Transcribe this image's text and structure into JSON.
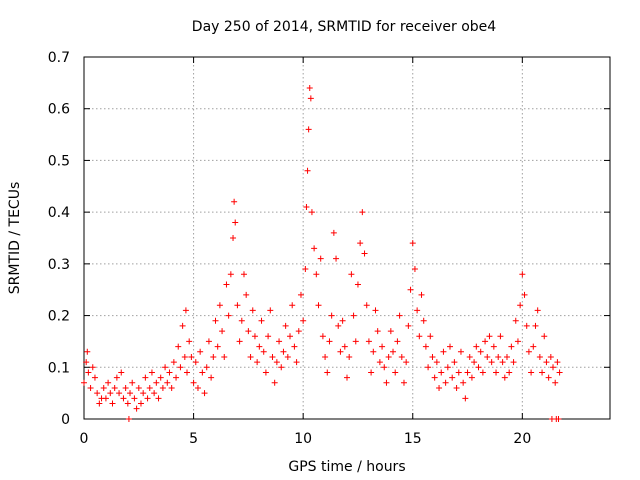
{
  "chart_data": {
    "type": "scatter",
    "title": "Day 250 of 2014, SRMTID for receiver obe4",
    "xlabel": "GPS time / hours",
    "ylabel": "SRMTID / TECUs",
    "xlim": [
      0,
      24
    ],
    "ylim": [
      0,
      0.7
    ],
    "xticks": [
      0,
      5,
      10,
      15,
      20
    ],
    "xtick_labels": [
      "0",
      "5",
      "10",
      "15",
      "20"
    ],
    "yticks": [
      0,
      0.1,
      0.2,
      0.3,
      0.4,
      0.5,
      0.6,
      0.7
    ],
    "ytick_labels": [
      "0",
      "0.1",
      "0.2",
      "0.3",
      "0.4",
      "0.5",
      "0.6",
      "0.7"
    ],
    "grid": true,
    "marker": "+",
    "color": "#ff0000",
    "series": [
      {
        "name": "SRMTID",
        "points": [
          [
            0.0,
            0.07
          ],
          [
            0.1,
            0.11
          ],
          [
            0.15,
            0.13
          ],
          [
            0.2,
            0.09
          ],
          [
            0.3,
            0.06
          ],
          [
            0.4,
            0.1
          ],
          [
            0.5,
            0.08
          ],
          [
            0.6,
            0.05
          ],
          [
            0.7,
            0.03
          ],
          [
            0.8,
            0.04
          ],
          [
            0.9,
            0.06
          ],
          [
            1.0,
            0.04
          ],
          [
            1.1,
            0.07
          ],
          [
            1.2,
            0.05
          ],
          [
            1.3,
            0.03
          ],
          [
            1.4,
            0.06
          ],
          [
            1.5,
            0.08
          ],
          [
            1.6,
            0.05
          ],
          [
            1.7,
            0.09
          ],
          [
            1.8,
            0.04
          ],
          [
            1.9,
            0.06
          ],
          [
            2.0,
            0.03
          ],
          [
            2.05,
            0.0
          ],
          [
            2.1,
            0.05
          ],
          [
            2.2,
            0.07
          ],
          [
            2.3,
            0.04
          ],
          [
            2.4,
            0.02
          ],
          [
            2.5,
            0.06
          ],
          [
            2.6,
            0.03
          ],
          [
            2.7,
            0.05
          ],
          [
            2.8,
            0.08
          ],
          [
            2.9,
            0.04
          ],
          [
            3.0,
            0.06
          ],
          [
            3.1,
            0.09
          ],
          [
            3.2,
            0.05
          ],
          [
            3.3,
            0.07
          ],
          [
            3.4,
            0.04
          ],
          [
            3.5,
            0.08
          ],
          [
            3.6,
            0.06
          ],
          [
            3.7,
            0.1
          ],
          [
            3.8,
            0.07
          ],
          [
            3.9,
            0.09
          ],
          [
            4.0,
            0.06
          ],
          [
            4.1,
            0.11
          ],
          [
            4.2,
            0.08
          ],
          [
            4.3,
            0.14
          ],
          [
            4.4,
            0.1
          ],
          [
            4.5,
            0.18
          ],
          [
            4.6,
            0.12
          ],
          [
            4.65,
            0.21
          ],
          [
            4.7,
            0.09
          ],
          [
            4.8,
            0.15
          ],
          [
            4.9,
            0.12
          ],
          [
            5.0,
            0.07
          ],
          [
            5.1,
            0.11
          ],
          [
            5.2,
            0.06
          ],
          [
            5.3,
            0.13
          ],
          [
            5.4,
            0.09
          ],
          [
            5.5,
            0.05
          ],
          [
            5.6,
            0.1
          ],
          [
            5.7,
            0.15
          ],
          [
            5.8,
            0.08
          ],
          [
            5.9,
            0.12
          ],
          [
            6.0,
            0.19
          ],
          [
            6.1,
            0.14
          ],
          [
            6.2,
            0.22
          ],
          [
            6.3,
            0.17
          ],
          [
            6.4,
            0.12
          ],
          [
            6.5,
            0.26
          ],
          [
            6.6,
            0.2
          ],
          [
            6.7,
            0.28
          ],
          [
            6.8,
            0.35
          ],
          [
            6.85,
            0.42
          ],
          [
            6.9,
            0.38
          ],
          [
            7.0,
            0.22
          ],
          [
            7.1,
            0.15
          ],
          [
            7.2,
            0.19
          ],
          [
            7.3,
            0.28
          ],
          [
            7.4,
            0.24
          ],
          [
            7.5,
            0.17
          ],
          [
            7.6,
            0.12
          ],
          [
            7.7,
            0.21
          ],
          [
            7.8,
            0.16
          ],
          [
            7.9,
            0.11
          ],
          [
            8.0,
            0.14
          ],
          [
            8.1,
            0.19
          ],
          [
            8.2,
            0.13
          ],
          [
            8.3,
            0.09
          ],
          [
            8.4,
            0.16
          ],
          [
            8.5,
            0.21
          ],
          [
            8.6,
            0.12
          ],
          [
            8.7,
            0.07
          ],
          [
            8.8,
            0.11
          ],
          [
            8.9,
            0.15
          ],
          [
            9.0,
            0.1
          ],
          [
            9.1,
            0.13
          ],
          [
            9.2,
            0.18
          ],
          [
            9.3,
            0.12
          ],
          [
            9.4,
            0.16
          ],
          [
            9.5,
            0.22
          ],
          [
            9.6,
            0.14
          ],
          [
            9.7,
            0.11
          ],
          [
            9.8,
            0.17
          ],
          [
            9.9,
            0.24
          ],
          [
            10.0,
            0.19
          ],
          [
            10.1,
            0.29
          ],
          [
            10.15,
            0.41
          ],
          [
            10.2,
            0.48
          ],
          [
            10.25,
            0.56
          ],
          [
            10.3,
            0.64
          ],
          [
            10.35,
            0.62
          ],
          [
            10.4,
            0.4
          ],
          [
            10.5,
            0.33
          ],
          [
            10.6,
            0.28
          ],
          [
            10.7,
            0.22
          ],
          [
            10.8,
            0.31
          ],
          [
            10.9,
            0.16
          ],
          [
            11.0,
            0.12
          ],
          [
            11.1,
            0.09
          ],
          [
            11.2,
            0.15
          ],
          [
            11.3,
            0.2
          ],
          [
            11.4,
            0.36
          ],
          [
            11.5,
            0.31
          ],
          [
            11.6,
            0.18
          ],
          [
            11.7,
            0.13
          ],
          [
            11.8,
            0.19
          ],
          [
            11.9,
            0.14
          ],
          [
            12.0,
            0.08
          ],
          [
            12.1,
            0.12
          ],
          [
            12.2,
            0.28
          ],
          [
            12.3,
            0.2
          ],
          [
            12.4,
            0.15
          ],
          [
            12.5,
            0.26
          ],
          [
            12.6,
            0.34
          ],
          [
            12.7,
            0.4
          ],
          [
            12.8,
            0.32
          ],
          [
            12.9,
            0.22
          ],
          [
            13.0,
            0.15
          ],
          [
            13.1,
            0.09
          ],
          [
            13.2,
            0.13
          ],
          [
            13.3,
            0.21
          ],
          [
            13.4,
            0.17
          ],
          [
            13.5,
            0.11
          ],
          [
            13.6,
            0.14
          ],
          [
            13.7,
            0.1
          ],
          [
            13.8,
            0.07
          ],
          [
            13.9,
            0.12
          ],
          [
            14.0,
            0.17
          ],
          [
            14.1,
            0.13
          ],
          [
            14.2,
            0.09
          ],
          [
            14.3,
            0.15
          ],
          [
            14.4,
            0.2
          ],
          [
            14.5,
            0.12
          ],
          [
            14.6,
            0.07
          ],
          [
            14.7,
            0.11
          ],
          [
            14.8,
            0.18
          ],
          [
            14.9,
            0.25
          ],
          [
            15.0,
            0.34
          ],
          [
            15.1,
            0.29
          ],
          [
            15.2,
            0.21
          ],
          [
            15.3,
            0.16
          ],
          [
            15.4,
            0.24
          ],
          [
            15.5,
            0.19
          ],
          [
            15.6,
            0.14
          ],
          [
            15.7,
            0.1
          ],
          [
            15.8,
            0.16
          ],
          [
            15.9,
            0.12
          ],
          [
            16.0,
            0.08
          ],
          [
            16.1,
            0.11
          ],
          [
            16.2,
            0.06
          ],
          [
            16.3,
            0.09
          ],
          [
            16.4,
            0.13
          ],
          [
            16.5,
            0.07
          ],
          [
            16.6,
            0.1
          ],
          [
            16.7,
            0.14
          ],
          [
            16.8,
            0.08
          ],
          [
            16.9,
            0.11
          ],
          [
            17.0,
            0.06
          ],
          [
            17.1,
            0.09
          ],
          [
            17.2,
            0.13
          ],
          [
            17.3,
            0.07
          ],
          [
            17.4,
            0.04
          ],
          [
            17.5,
            0.09
          ],
          [
            17.6,
            0.12
          ],
          [
            17.7,
            0.08
          ],
          [
            17.8,
            0.11
          ],
          [
            17.9,
            0.14
          ],
          [
            18.0,
            0.1
          ],
          [
            18.1,
            0.13
          ],
          [
            18.2,
            0.09
          ],
          [
            18.3,
            0.15
          ],
          [
            18.4,
            0.12
          ],
          [
            18.5,
            0.16
          ],
          [
            18.6,
            0.11
          ],
          [
            18.7,
            0.14
          ],
          [
            18.8,
            0.09
          ],
          [
            18.9,
            0.12
          ],
          [
            19.0,
            0.16
          ],
          [
            19.1,
            0.11
          ],
          [
            19.2,
            0.08
          ],
          [
            19.3,
            0.12
          ],
          [
            19.4,
            0.09
          ],
          [
            19.5,
            0.14
          ],
          [
            19.6,
            0.11
          ],
          [
            19.7,
            0.19
          ],
          [
            19.8,
            0.15
          ],
          [
            19.9,
            0.22
          ],
          [
            20.0,
            0.28
          ],
          [
            20.1,
            0.24
          ],
          [
            20.2,
            0.18
          ],
          [
            20.3,
            0.13
          ],
          [
            20.4,
            0.09
          ],
          [
            20.5,
            0.14
          ],
          [
            20.6,
            0.18
          ],
          [
            20.7,
            0.21
          ],
          [
            20.8,
            0.12
          ],
          [
            20.9,
            0.09
          ],
          [
            21.0,
            0.16
          ],
          [
            21.1,
            0.11
          ],
          [
            21.2,
            0.08
          ],
          [
            21.3,
            0.12
          ],
          [
            21.35,
            0.0
          ],
          [
            21.4,
            0.1
          ],
          [
            21.5,
            0.07
          ],
          [
            21.55,
            0.0
          ],
          [
            21.6,
            0.11
          ],
          [
            21.65,
            0.0
          ],
          [
            21.7,
            0.09
          ]
        ]
      }
    ]
  }
}
